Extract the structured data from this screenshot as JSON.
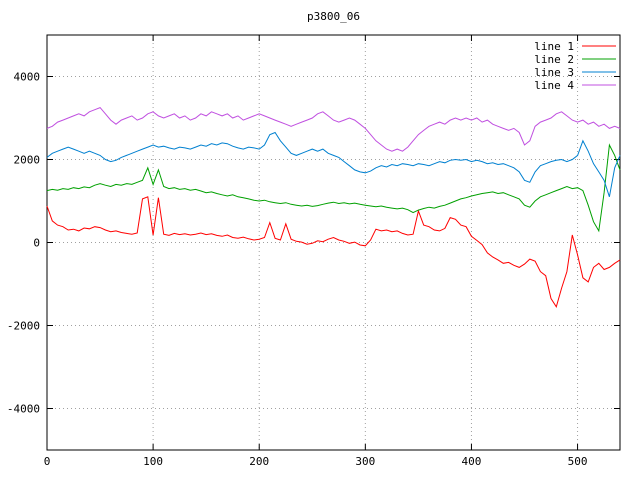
{
  "chart_data": {
    "type": "line",
    "title": "p3800_06",
    "xlabel": "",
    "ylabel": "",
    "xlim": [
      0,
      540
    ],
    "ylim": [
      -5000,
      5000
    ],
    "x_ticks": [
      0,
      100,
      200,
      300,
      400,
      500
    ],
    "y_ticks": [
      -4000,
      -2000,
      0,
      2000,
      4000
    ],
    "grid": true,
    "grid_style": "dotted",
    "legend_position": "top-right",
    "background": "#ffffff",
    "border_color": "#000000",
    "grid_color": "#a0a0a0",
    "x_step": 5,
    "series": [
      {
        "name": "line 1",
        "color": "#ff0000",
        "values": [
          880,
          520,
          420,
          380,
          300,
          320,
          280,
          350,
          330,
          380,
          360,
          300,
          260,
          280,
          240,
          220,
          200,
          230,
          1050,
          1100,
          180,
          1080,
          200,
          170,
          220,
          190,
          210,
          180,
          200,
          230,
          190,
          210,
          170,
          150,
          180,
          120,
          100,
          130,
          90,
          60,
          80,
          120,
          480,
          100,
          60,
          450,
          80,
          30,
          10,
          -40,
          -20,
          40,
          20,
          80,
          120,
          60,
          30,
          -20,
          10,
          -60,
          -80,
          60,
          320,
          280,
          300,
          260,
          280,
          220,
          180,
          200,
          760,
          420,
          380,
          300,
          280,
          340,
          600,
          560,
          420,
          380,
          150,
          50,
          -50,
          -250,
          -350,
          -420,
          -500,
          -480,
          -550,
          -600,
          -520,
          -400,
          -450,
          -700,
          -800,
          -1350,
          -1550,
          -1100,
          -700,
          180,
          -300,
          -850,
          -950,
          -600,
          -500,
          -650,
          -600,
          -500,
          -420
        ]
      },
      {
        "name": "line 2",
        "color": "#00a000",
        "values": [
          1250,
          1280,
          1260,
          1300,
          1280,
          1320,
          1300,
          1340,
          1320,
          1380,
          1420,
          1380,
          1350,
          1400,
          1380,
          1420,
          1400,
          1450,
          1500,
          1800,
          1400,
          1750,
          1350,
          1300,
          1320,
          1280,
          1300,
          1260,
          1280,
          1240,
          1200,
          1220,
          1180,
          1150,
          1120,
          1150,
          1100,
          1080,
          1050,
          1020,
          1000,
          1020,
          980,
          960,
          940,
          960,
          920,
          900,
          880,
          900,
          870,
          890,
          920,
          950,
          970,
          940,
          960,
          930,
          950,
          920,
          900,
          880,
          860,
          880,
          850,
          830,
          810,
          830,
          790,
          720,
          780,
          820,
          850,
          830,
          870,
          900,
          950,
          1000,
          1050,
          1080,
          1120,
          1150,
          1180,
          1200,
          1220,
          1180,
          1200,
          1150,
          1100,
          1050,
          900,
          850,
          1000,
          1100,
          1150,
          1200,
          1250,
          1300,
          1350,
          1300,
          1320,
          1250,
          900,
          500,
          280,
          1200,
          2350,
          2100,
          1750
        ]
      },
      {
        "name": "line 3",
        "color": "#0080d0",
        "values": [
          2050,
          2150,
          2200,
          2250,
          2300,
          2250,
          2200,
          2150,
          2200,
          2150,
          2100,
          2000,
          1950,
          1980,
          2050,
          2100,
          2150,
          2200,
          2250,
          2300,
          2350,
          2300,
          2320,
          2280,
          2250,
          2300,
          2280,
          2250,
          2300,
          2350,
          2320,
          2380,
          2350,
          2400,
          2380,
          2320,
          2280,
          2250,
          2300,
          2280,
          2250,
          2350,
          2600,
          2650,
          2450,
          2300,
          2150,
          2100,
          2150,
          2200,
          2250,
          2200,
          2250,
          2150,
          2100,
          2050,
          1950,
          1850,
          1750,
          1700,
          1680,
          1720,
          1800,
          1850,
          1820,
          1880,
          1850,
          1900,
          1880,
          1850,
          1900,
          1880,
          1850,
          1900,
          1950,
          1920,
          1980,
          2000,
          1980,
          2000,
          1950,
          1980,
          1950,
          1900,
          1920,
          1880,
          1900,
          1850,
          1800,
          1700,
          1500,
          1450,
          1700,
          1850,
          1900,
          1950,
          1980,
          2000,
          1950,
          2000,
          2100,
          2450,
          2200,
          1900,
          1700,
          1500,
          1100,
          1800,
          2100
        ]
      },
      {
        "name": "line 4",
        "color": "#c050e0",
        "values": [
          2750,
          2800,
          2900,
          2950,
          3000,
          3050,
          3100,
          3050,
          3150,
          3200,
          3250,
          3100,
          2950,
          2850,
          2950,
          3000,
          3050,
          2950,
          3000,
          3100,
          3150,
          3050,
          3000,
          3050,
          3100,
          3000,
          3050,
          2950,
          3000,
          3100,
          3050,
          3150,
          3100,
          3050,
          3100,
          3000,
          3050,
          2950,
          3000,
          3050,
          3100,
          3050,
          3000,
          2950,
          2900,
          2850,
          2800,
          2850,
          2900,
          2950,
          3000,
          3100,
          3150,
          3050,
          2950,
          2900,
          2950,
          3000,
          2950,
          2850,
          2750,
          2600,
          2450,
          2350,
          2250,
          2200,
          2250,
          2200,
          2300,
          2450,
          2600,
          2700,
          2800,
          2850,
          2900,
          2850,
          2950,
          3000,
          2950,
          3000,
          2950,
          3000,
          2900,
          2950,
          2850,
          2800,
          2750,
          2700,
          2750,
          2650,
          2350,
          2450,
          2800,
          2900,
          2950,
          3000,
          3100,
          3150,
          3050,
          2950,
          2900,
          2950,
          2850,
          2900,
          2800,
          2850,
          2750,
          2800,
          2750
        ]
      }
    ]
  }
}
